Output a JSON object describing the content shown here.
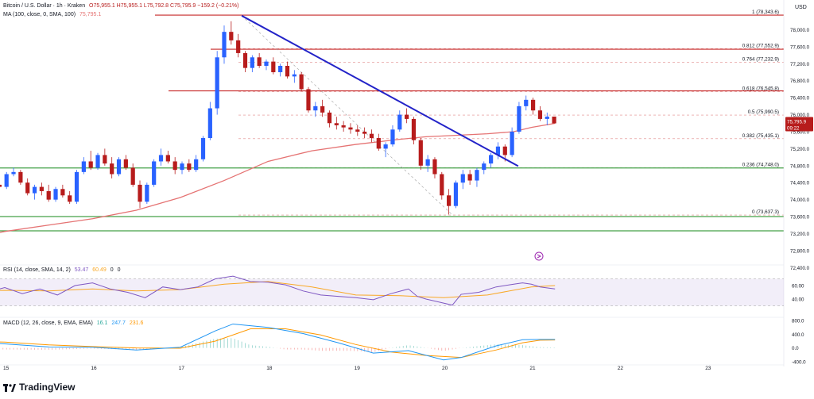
{
  "header": {
    "symbol": "Bitcoin / U.S. Dollar · 1h · Kraken",
    "ohlc": "O75,955.1 H75,955.1 L75,792.8 C75,795.9 −159.2 (−0.21%)",
    "ma_label": "MA (100, close, 0, SMA, 100)",
    "ma_value": "75,795.1",
    "rsi_label": "RSI (14, close, SMA, 14, 2)",
    "rsi_value1": "53.47",
    "rsi_value2": "60.49",
    "rsi_value3": "0",
    "rsi_value4": "0",
    "macd_label": "MACD (12, 26, close, 9, EMA, EMA)",
    "macd_value1": "16.1",
    "macd_value2": "247.7",
    "macd_value3": "231.6"
  },
  "currency": "USD",
  "brand": "TradingView",
  "colors": {
    "up": "#2962ff",
    "down": "#b71c1c",
    "ma": "#e57373",
    "trend": "#2323c8",
    "support": "#43a047",
    "resistance": "#c62828",
    "rsi": "#7e57c2",
    "rsi_ma": "#f9a825",
    "macd": "#2196f3",
    "signal": "#ff9800"
  },
  "chart_data": {
    "type": "candlestick",
    "x_ticks": [
      "15",
      "16",
      "17",
      "18",
      "19",
      "20",
      "21",
      "22",
      "23"
    ],
    "price_axis_ticks": [
      "78,000.0",
      "77,600.0",
      "77,200.0",
      "76,800.0",
      "76,400.0",
      "76,000.0",
      "75,600.0",
      "75,200.0",
      "74,800.0",
      "74,400.0",
      "74,000.0",
      "73,600.0",
      "73,200.0",
      "72,800.0",
      "72,400.0"
    ],
    "ylim": [
      72350,
      78700
    ],
    "fib_levels": [
      {
        "label": "1 (78,343.6)",
        "value": 78343.6
      },
      {
        "label": "0.812 (77,552.9)",
        "value": 77552.9
      },
      {
        "label": "0.764 (77,232.9)",
        "value": 77232.9
      },
      {
        "label": "0.618 (76,545.8)",
        "value": 76545.8
      },
      {
        "label": "0.5 (75,990.5)",
        "value": 75990.5
      },
      {
        "label": "0.382 (75,435.1)",
        "value": 75435.1
      },
      {
        "label": "0.236 (74,748.0)",
        "value": 74748.0
      },
      {
        "label": "0 (73,637.3)",
        "value": 73637.3
      }
    ],
    "horizontal_levels": [
      {
        "label": "77,541.2",
        "value": 77541.2,
        "kind": "resistance"
      },
      {
        "label": "76,560.4",
        "value": 76560.4,
        "kind": "resistance"
      },
      {
        "label": "74,745.4",
        "value": 74745.4,
        "kind": "support"
      },
      {
        "label": "73,601.3",
        "value": 73601.3,
        "kind": "support"
      },
      {
        "label": "73,265.7",
        "value": 73265.7,
        "kind": "support"
      }
    ],
    "top_level": {
      "value": 78343.6,
      "kind": "resistance"
    },
    "current_price": {
      "label": "75,795.9",
      "countdown": "09:22",
      "value": 75795.9
    },
    "trendline": {
      "start": [
        17.7,
        78330
      ],
      "end": [
        20.85,
        74790
      ]
    },
    "candles": [
      {
        "t": 14.62,
        "o": 74350,
        "h": 74750,
        "l": 74250,
        "c": 74650
      },
      {
        "t": 14.7,
        "o": 74650,
        "h": 74700,
        "l": 74400,
        "c": 74450
      },
      {
        "t": 14.78,
        "o": 74450,
        "h": 74600,
        "l": 74300,
        "c": 74500
      },
      {
        "t": 14.86,
        "o": 74500,
        "h": 74700,
        "l": 74300,
        "c": 74350
      },
      {
        "t": 14.94,
        "o": 74350,
        "h": 74500,
        "l": 74200,
        "c": 74300
      },
      {
        "t": 15.02,
        "o": 74300,
        "h": 74650,
        "l": 74250,
        "c": 74600
      },
      {
        "t": 15.1,
        "o": 74600,
        "h": 74750,
        "l": 74550,
        "c": 74650
      },
      {
        "t": 15.18,
        "o": 74650,
        "h": 74700,
        "l": 74350,
        "c": 74400
      },
      {
        "t": 15.26,
        "o": 74400,
        "h": 74500,
        "l": 74100,
        "c": 74150
      },
      {
        "t": 15.34,
        "o": 74150,
        "h": 74350,
        "l": 74000,
        "c": 74300
      },
      {
        "t": 15.42,
        "o": 74300,
        "h": 74400,
        "l": 74100,
        "c": 74200
      },
      {
        "t": 15.5,
        "o": 74200,
        "h": 74350,
        "l": 73950,
        "c": 74000
      },
      {
        "t": 15.58,
        "o": 74000,
        "h": 74300,
        "l": 73950,
        "c": 74250
      },
      {
        "t": 15.66,
        "o": 74250,
        "h": 74350,
        "l": 74050,
        "c": 74100
      },
      {
        "t": 15.74,
        "o": 74100,
        "h": 74200,
        "l": 73900,
        "c": 73950
      },
      {
        "t": 15.82,
        "o": 73950,
        "h": 74700,
        "l": 73900,
        "c": 74650
      },
      {
        "t": 15.9,
        "o": 74650,
        "h": 75000,
        "l": 74600,
        "c": 74900
      },
      {
        "t": 15.98,
        "o": 74900,
        "h": 75150,
        "l": 74700,
        "c": 74750
      },
      {
        "t": 16.06,
        "o": 74750,
        "h": 75100,
        "l": 74700,
        "c": 75050
      },
      {
        "t": 16.14,
        "o": 75050,
        "h": 75200,
        "l": 74800,
        "c": 74850
      },
      {
        "t": 16.22,
        "o": 74850,
        "h": 75000,
        "l": 74500,
        "c": 74600
      },
      {
        "t": 16.3,
        "o": 74600,
        "h": 75000,
        "l": 74550,
        "c": 74950
      },
      {
        "t": 16.38,
        "o": 74950,
        "h": 75050,
        "l": 74700,
        "c": 74750
      },
      {
        "t": 16.46,
        "o": 74750,
        "h": 74850,
        "l": 74300,
        "c": 74350
      },
      {
        "t": 16.54,
        "o": 74350,
        "h": 74450,
        "l": 73800,
        "c": 73950
      },
      {
        "t": 16.62,
        "o": 73950,
        "h": 74400,
        "l": 73900,
        "c": 74350
      },
      {
        "t": 16.7,
        "o": 74350,
        "h": 74950,
        "l": 74300,
        "c": 74900
      },
      {
        "t": 16.78,
        "o": 74900,
        "h": 75200,
        "l": 74800,
        "c": 75050
      },
      {
        "t": 16.86,
        "o": 75050,
        "h": 75150,
        "l": 74850,
        "c": 74900
      },
      {
        "t": 16.94,
        "o": 74900,
        "h": 75000,
        "l": 74600,
        "c": 74700
      },
      {
        "t": 17.02,
        "o": 74700,
        "h": 74900,
        "l": 74600,
        "c": 74850
      },
      {
        "t": 17.1,
        "o": 74850,
        "h": 74950,
        "l": 74650,
        "c": 74700
      },
      {
        "t": 17.18,
        "o": 74700,
        "h": 75050,
        "l": 74650,
        "c": 74950
      },
      {
        "t": 17.26,
        "o": 74950,
        "h": 75500,
        "l": 74900,
        "c": 75450
      },
      {
        "t": 17.34,
        "o": 75450,
        "h": 76300,
        "l": 75400,
        "c": 76150
      },
      {
        "t": 17.42,
        "o": 76150,
        "h": 77500,
        "l": 76000,
        "c": 77350
      },
      {
        "t": 17.5,
        "o": 77350,
        "h": 78100,
        "l": 77200,
        "c": 77950
      },
      {
        "t": 17.58,
        "o": 77950,
        "h": 78200,
        "l": 77650,
        "c": 77750
      },
      {
        "t": 17.66,
        "o": 77750,
        "h": 77900,
        "l": 77350,
        "c": 77450
      },
      {
        "t": 17.74,
        "o": 77450,
        "h": 77500,
        "l": 77000,
        "c": 77100
      },
      {
        "t": 17.82,
        "o": 77100,
        "h": 77400,
        "l": 77000,
        "c": 77350
      },
      {
        "t": 17.9,
        "o": 77350,
        "h": 77450,
        "l": 77100,
        "c": 77150
      },
      {
        "t": 17.98,
        "o": 77150,
        "h": 77300,
        "l": 77050,
        "c": 77250
      },
      {
        "t": 18.06,
        "o": 77250,
        "h": 77350,
        "l": 76950,
        "c": 77000
      },
      {
        "t": 18.14,
        "o": 77000,
        "h": 77200,
        "l": 76900,
        "c": 77150
      },
      {
        "t": 18.22,
        "o": 77150,
        "h": 77250,
        "l": 76850,
        "c": 76900
      },
      {
        "t": 18.3,
        "o": 76900,
        "h": 77050,
        "l": 76750,
        "c": 76950
      },
      {
        "t": 18.38,
        "o": 76950,
        "h": 77000,
        "l": 76550,
        "c": 76600
      },
      {
        "t": 18.46,
        "o": 76600,
        "h": 76650,
        "l": 76050,
        "c": 76100
      },
      {
        "t": 18.54,
        "o": 76100,
        "h": 76300,
        "l": 75950,
        "c": 76200
      },
      {
        "t": 18.62,
        "o": 76200,
        "h": 76350,
        "l": 75950,
        "c": 76050
      },
      {
        "t": 18.7,
        "o": 76050,
        "h": 76100,
        "l": 75700,
        "c": 75800
      },
      {
        "t": 18.78,
        "o": 75800,
        "h": 75950,
        "l": 75650,
        "c": 75750
      },
      {
        "t": 18.86,
        "o": 75750,
        "h": 75850,
        "l": 75600,
        "c": 75700
      },
      {
        "t": 18.94,
        "o": 75700,
        "h": 75800,
        "l": 75550,
        "c": 75650
      },
      {
        "t": 19.02,
        "o": 75650,
        "h": 75750,
        "l": 75500,
        "c": 75600
      },
      {
        "t": 19.1,
        "o": 75600,
        "h": 75700,
        "l": 75450,
        "c": 75550
      },
      {
        "t": 19.18,
        "o": 75550,
        "h": 75650,
        "l": 75350,
        "c": 75450
      },
      {
        "t": 19.26,
        "o": 75450,
        "h": 75550,
        "l": 75150,
        "c": 75200
      },
      {
        "t": 19.34,
        "o": 75200,
        "h": 75350,
        "l": 75000,
        "c": 75300
      },
      {
        "t": 19.42,
        "o": 75300,
        "h": 75750,
        "l": 75250,
        "c": 75650
      },
      {
        "t": 19.5,
        "o": 75650,
        "h": 76100,
        "l": 75600,
        "c": 76000
      },
      {
        "t": 19.58,
        "o": 76000,
        "h": 76150,
        "l": 75800,
        "c": 75900
      },
      {
        "t": 19.66,
        "o": 75900,
        "h": 75950,
        "l": 75300,
        "c": 75400
      },
      {
        "t": 19.74,
        "o": 75400,
        "h": 75450,
        "l": 74700,
        "c": 74800
      },
      {
        "t": 19.82,
        "o": 74800,
        "h": 75050,
        "l": 74650,
        "c": 74950
      },
      {
        "t": 19.9,
        "o": 74950,
        "h": 75000,
        "l": 74500,
        "c": 74600
      },
      {
        "t": 19.98,
        "o": 74600,
        "h": 74650,
        "l": 74000,
        "c": 74100
      },
      {
        "t": 20.06,
        "o": 74100,
        "h": 74250,
        "l": 73650,
        "c": 73850
      },
      {
        "t": 20.14,
        "o": 73850,
        "h": 74450,
        "l": 73800,
        "c": 74400
      },
      {
        "t": 20.22,
        "o": 74400,
        "h": 74700,
        "l": 74250,
        "c": 74600
      },
      {
        "t": 20.3,
        "o": 74600,
        "h": 74700,
        "l": 74350,
        "c": 74450
      },
      {
        "t": 20.38,
        "o": 74450,
        "h": 74750,
        "l": 74300,
        "c": 74700
      },
      {
        "t": 20.46,
        "o": 74700,
        "h": 74900,
        "l": 74600,
        "c": 74850
      },
      {
        "t": 20.54,
        "o": 74850,
        "h": 75100,
        "l": 74750,
        "c": 75050
      },
      {
        "t": 20.62,
        "o": 75050,
        "h": 75350,
        "l": 74950,
        "c": 75250
      },
      {
        "t": 20.7,
        "o": 75250,
        "h": 75300,
        "l": 74900,
        "c": 75050
      },
      {
        "t": 20.78,
        "o": 75050,
        "h": 75700,
        "l": 75000,
        "c": 75600
      },
      {
        "t": 20.86,
        "o": 75600,
        "h": 76300,
        "l": 75550,
        "c": 76200
      },
      {
        "t": 20.94,
        "o": 76200,
        "h": 76450,
        "l": 76100,
        "c": 76350
      },
      {
        "t": 21.02,
        "o": 76350,
        "h": 76400,
        "l": 76000,
        "c": 76100
      },
      {
        "t": 21.1,
        "o": 76100,
        "h": 76200,
        "l": 75850,
        "c": 75900
      },
      {
        "t": 21.18,
        "o": 75900,
        "h": 76050,
        "l": 75750,
        "c": 75955
      },
      {
        "t": 21.26,
        "o": 75955,
        "h": 75955,
        "l": 75793,
        "c": 75796
      }
    ],
    "ma_points": [
      [
        14.6,
        73100
      ],
      [
        15.0,
        73250
      ],
      [
        15.5,
        73400
      ],
      [
        16.0,
        73550
      ],
      [
        16.5,
        73750
      ],
      [
        17.0,
        74050
      ],
      [
        17.5,
        74450
      ],
      [
        18.0,
        74900
      ],
      [
        18.5,
        75150
      ],
      [
        19.0,
        75300
      ],
      [
        19.5,
        75420
      ],
      [
        19.8,
        75480
      ],
      [
        20.0,
        75500
      ],
      [
        20.5,
        75550
      ],
      [
        20.8,
        75600
      ],
      [
        21.0,
        75700
      ],
      [
        21.27,
        75795
      ]
    ],
    "rsi": {
      "ylim": [
        20,
        80
      ],
      "ticks": [
        "60.00",
        "40.00"
      ],
      "band": [
        30,
        70
      ],
      "points": [
        [
          14.6,
          55
        ],
        [
          14.8,
          50
        ],
        [
          15.0,
          57
        ],
        [
          15.2,
          48
        ],
        [
          15.4,
          55
        ],
        [
          15.6,
          46
        ],
        [
          15.8,
          60
        ],
        [
          16.0,
          64
        ],
        [
          16.2,
          55
        ],
        [
          16.4,
          50
        ],
        [
          16.6,
          42
        ],
        [
          16.8,
          58
        ],
        [
          17.0,
          54
        ],
        [
          17.2,
          58
        ],
        [
          17.4,
          70
        ],
        [
          17.6,
          74
        ],
        [
          17.8,
          66
        ],
        [
          18.0,
          65
        ],
        [
          18.2,
          61
        ],
        [
          18.4,
          52
        ],
        [
          18.6,
          46
        ],
        [
          18.8,
          44
        ],
        [
          19.0,
          42
        ],
        [
          19.2,
          39
        ],
        [
          19.4,
          48
        ],
        [
          19.6,
          55
        ],
        [
          19.7,
          44
        ],
        [
          19.8,
          40
        ],
        [
          20.0,
          34
        ],
        [
          20.1,
          31
        ],
        [
          20.2,
          47
        ],
        [
          20.4,
          50
        ],
        [
          20.6,
          58
        ],
        [
          20.8,
          62
        ],
        [
          20.9,
          64
        ],
        [
          21.0,
          62
        ],
        [
          21.1,
          58
        ],
        [
          21.27,
          55
        ]
      ],
      "ma_points": [
        [
          14.6,
          52
        ],
        [
          15.0,
          53
        ],
        [
          15.5,
          52
        ],
        [
          16.0,
          55
        ],
        [
          16.5,
          52
        ],
        [
          17.0,
          54
        ],
        [
          17.5,
          62
        ],
        [
          18.0,
          66
        ],
        [
          18.5,
          58
        ],
        [
          19.0,
          46
        ],
        [
          19.5,
          45
        ],
        [
          20.0,
          42
        ],
        [
          20.5,
          46
        ],
        [
          21.0,
          58
        ],
        [
          21.27,
          60
        ]
      ]
    },
    "macd": {
      "ylim": [
        -450,
        850
      ],
      "ticks": [
        "800.0",
        "400.0",
        "0.0",
        "-400.0"
      ],
      "macd": [
        [
          14.6,
          170
        ],
        [
          15.0,
          120
        ],
        [
          15.5,
          30
        ],
        [
          16.0,
          20
        ],
        [
          16.5,
          -60
        ],
        [
          17.0,
          20
        ],
        [
          17.4,
          500
        ],
        [
          17.6,
          700
        ],
        [
          18.0,
          600
        ],
        [
          18.4,
          420
        ],
        [
          18.8,
          150
        ],
        [
          19.2,
          -150
        ],
        [
          19.6,
          -80
        ],
        [
          20.0,
          -350
        ],
        [
          20.2,
          -280
        ],
        [
          20.6,
          60
        ],
        [
          20.9,
          240
        ],
        [
          21.1,
          250
        ],
        [
          21.27,
          248
        ]
      ],
      "signal": [
        [
          14.6,
          200
        ],
        [
          15.0,
          170
        ],
        [
          15.5,
          90
        ],
        [
          16.0,
          40
        ],
        [
          16.5,
          0
        ],
        [
          17.0,
          -10
        ],
        [
          17.4,
          200
        ],
        [
          17.8,
          560
        ],
        [
          18.2,
          560
        ],
        [
          18.6,
          380
        ],
        [
          19.0,
          100
        ],
        [
          19.4,
          -120
        ],
        [
          19.8,
          -220
        ],
        [
          20.2,
          -280
        ],
        [
          20.6,
          -60
        ],
        [
          20.9,
          150
        ],
        [
          21.1,
          225
        ],
        [
          21.27,
          232
        ]
      ]
    }
  }
}
